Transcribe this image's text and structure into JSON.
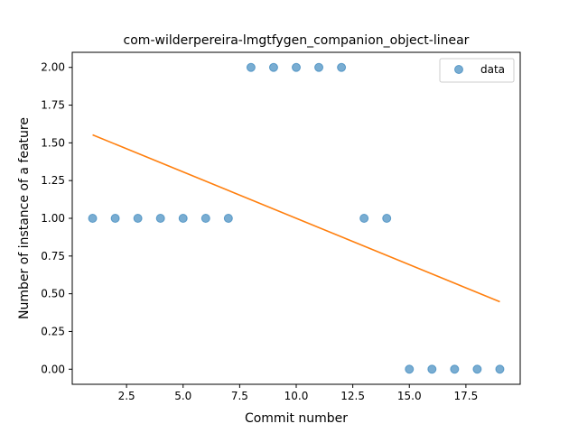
{
  "chart_data": {
    "type": "scatter",
    "title": "com-wilderpereira-lmgtfygen_companion_object-linear",
    "xlabel": "Commit number",
    "ylabel": "Number of instance of a feature",
    "xlim": [
      0.1,
      19.9
    ],
    "ylim": [
      -0.1,
      2.1
    ],
    "x_ticks": [
      "2.5",
      "5.0",
      "7.5",
      "10.0",
      "12.5",
      "15.0",
      "17.5"
    ],
    "y_ticks": [
      "0.00",
      "0.25",
      "0.50",
      "0.75",
      "1.00",
      "1.25",
      "1.50",
      "1.75",
      "2.00"
    ],
    "legend": {
      "position": "top-right",
      "entries": [
        "data"
      ]
    },
    "series": [
      {
        "name": "data",
        "kind": "scatter",
        "color": "#1f77b4",
        "x": [
          1,
          2,
          3,
          4,
          5,
          6,
          7,
          8,
          9,
          10,
          11,
          12,
          13,
          14,
          15,
          16,
          17,
          18,
          19
        ],
        "y": [
          1,
          1,
          1,
          1,
          1,
          1,
          1,
          2,
          2,
          2,
          2,
          2,
          1,
          1,
          0,
          0,
          0,
          0,
          0
        ]
      },
      {
        "kind": "line",
        "color": "#ff7f0e",
        "x": [
          1,
          19
        ],
        "y": [
          1.553,
          0.447
        ]
      }
    ]
  }
}
